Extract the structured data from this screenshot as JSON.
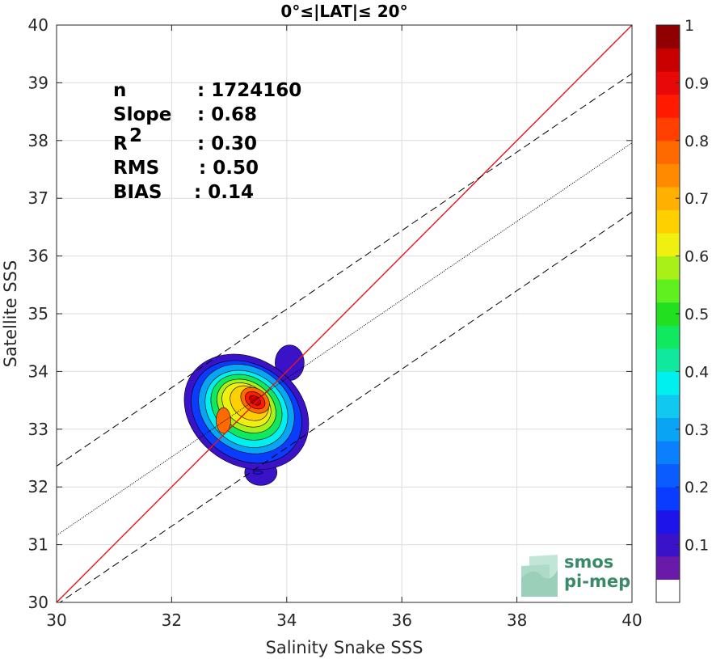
{
  "chart_data": {
    "type": "scatter",
    "subtype": "density-contour",
    "title": "0°≤|LAT|≤ 20°",
    "xlabel": "Salinity Snake SSS",
    "ylabel": "Satellite SSS",
    "xlim": [
      30,
      40
    ],
    "ylim": [
      30,
      40
    ],
    "xticks": [
      30,
      32,
      34,
      36,
      38,
      40
    ],
    "yticks": [
      30,
      31,
      32,
      33,
      34,
      35,
      36,
      37,
      38,
      39,
      40
    ],
    "grid": true,
    "stats": [
      {
        "label": "n",
        "value": ": 1724160"
      },
      {
        "label": "Slope",
        "value": ": 0.68"
      },
      {
        "label": "R",
        "sup": "2",
        "value": ": 0.30"
      },
      {
        "label": "RMS",
        "value": ": 0.50"
      },
      {
        "label": "BIAS",
        "value": ": 0.14"
      }
    ],
    "lines": {
      "one_to_one": {
        "slope": 1,
        "intercept": 0,
        "color": "#e8141c"
      },
      "regression": {
        "slope": 0.68,
        "intercept": 10.76,
        "style": "dotted"
      },
      "bounds": {
        "offset": 1.2,
        "style": "dashed"
      }
    },
    "density_peak": {
      "x": 33.45,
      "y": 33.5
    },
    "density_secondary_peak": {
      "x": 32.9,
      "y": 33.15
    },
    "colorbar": {
      "ticks": [
        "0.1",
        "0.2",
        "0.3",
        "0.4",
        "0.5",
        "0.6",
        "0.7",
        "0.8",
        "0.9",
        "1"
      ],
      "range": [
        0,
        1
      ],
      "colors": [
        "#ffffff",
        "#6a1aa8",
        "#3a12c8",
        "#1c14e8",
        "#0a3cff",
        "#0a5cff",
        "#0a80ff",
        "#0aa4f4",
        "#10c8f0",
        "#00f0f0",
        "#10e8a0",
        "#10e860",
        "#22e020",
        "#60f020",
        "#a8f018",
        "#f0f010",
        "#ffd000",
        "#ffb000",
        "#ff8a00",
        "#ff6a00",
        "#ff4000",
        "#ff1a00",
        "#e80808",
        "#c80000",
        "#900000"
      ]
    }
  },
  "logo": {
    "line1": "smos",
    "line2": "pi-mep"
  }
}
